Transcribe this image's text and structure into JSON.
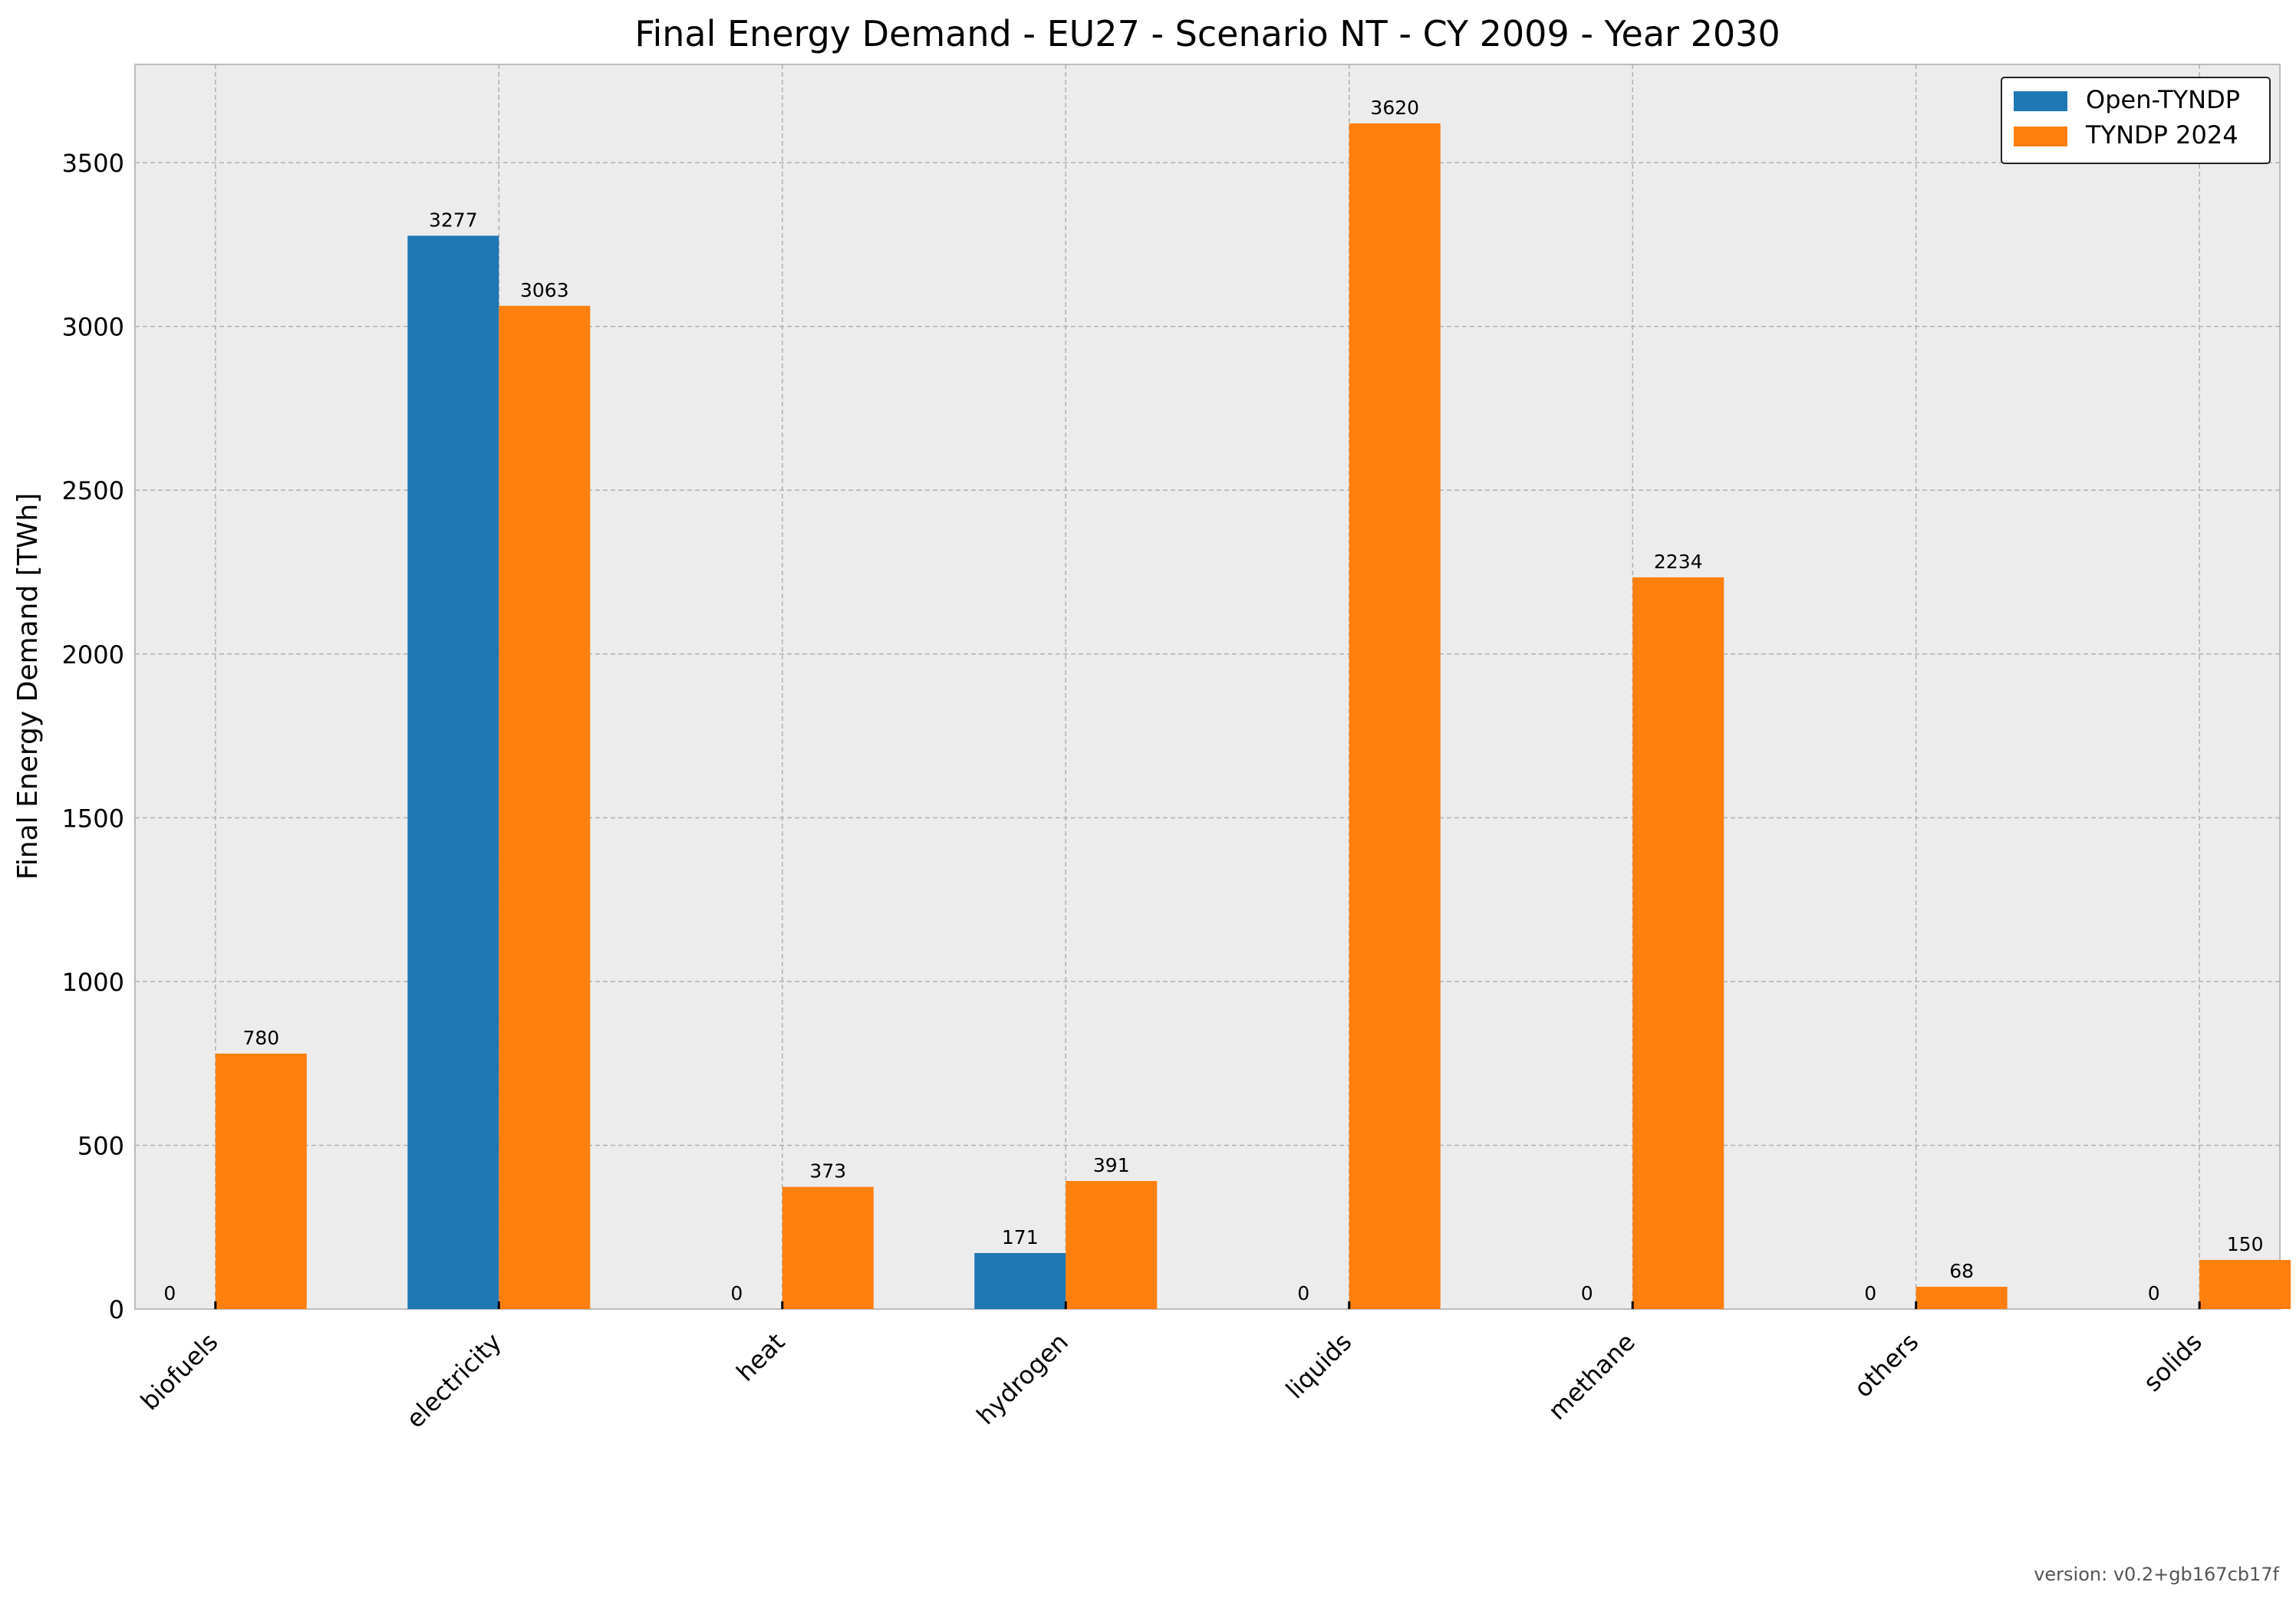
{
  "chart_data": {
    "type": "bar",
    "title": "Final Energy Demand - EU27 - Scenario NT - CY 2009 - Year 2030",
    "xlabel": "",
    "ylabel": "Final Energy Demand [TWh]",
    "categories": [
      "biofuels",
      "electricity",
      "heat",
      "hydrogen",
      "liquids",
      "methane",
      "others",
      "solids"
    ],
    "series": [
      {
        "name": "Open-TYNDP",
        "color": "#1f77b4",
        "values": [
          0,
          3277,
          0,
          171,
          0,
          0,
          0,
          0
        ]
      },
      {
        "name": "TYNDP 2024",
        "color": "#ff7f0e",
        "values": [
          780,
          3063,
          373,
          391,
          3620,
          2234,
          68,
          150
        ]
      }
    ],
    "ylim": [
      0,
      3800
    ],
    "yticks": [
      0,
      500,
      1000,
      1500,
      2000,
      2500,
      3000,
      3500
    ],
    "grid": true,
    "legend_position": "top-right",
    "data_labels": true,
    "background_color": "#ececec"
  },
  "footer": {
    "version": "version: v0.2+gb167cb17f"
  }
}
